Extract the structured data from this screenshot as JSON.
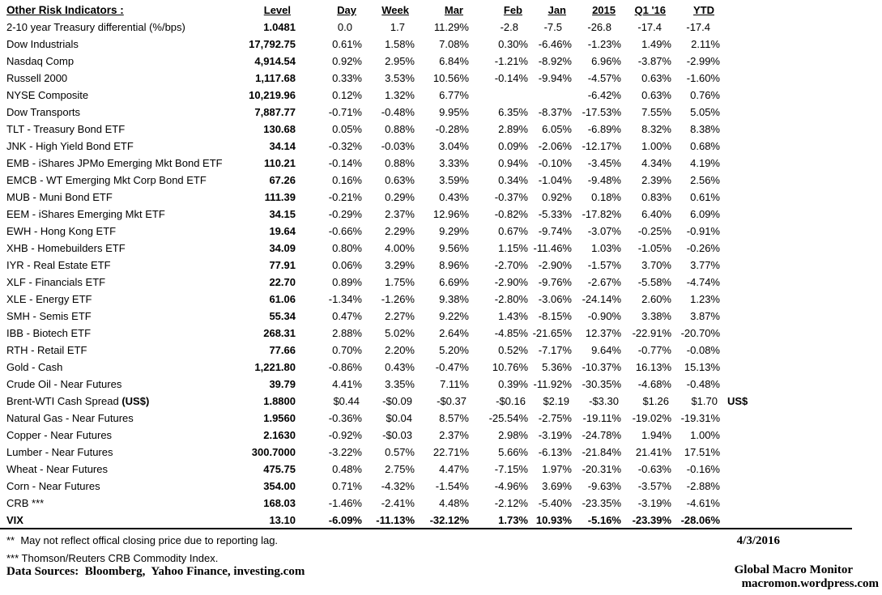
{
  "chart_data": {
    "type": "table",
    "title": "Other Risk Indicators :",
    "columns": [
      "Level",
      "Day",
      "Week",
      "Mar",
      "Feb",
      "Jan",
      "2015",
      "Q1 '16",
      "YTD"
    ],
    "rows": [
      {
        "label": "2-10 year Treasury differential (%/bps)",
        "values": [
          "1.0481",
          "0.0",
          "1.7",
          "11.29%",
          "-2.8",
          "-7.5",
          "-26.8",
          "-17.4",
          "-17.4"
        ]
      },
      {
        "label": "Dow Industrials",
        "values": [
          "17,792.75",
          "0.61%",
          "1.58%",
          "7.08%",
          "0.30%",
          "-6.46%",
          "-1.23%",
          "1.49%",
          "2.11%"
        ]
      },
      {
        "label": "Nasdaq Comp",
        "values": [
          "4,914.54",
          "0.92%",
          "2.95%",
          "6.84%",
          "-1.21%",
          "-8.92%",
          "6.96%",
          "-3.87%",
          "-2.99%"
        ]
      },
      {
        "label": "Russell 2000",
        "values": [
          "1,117.68",
          "0.33%",
          "3.53%",
          "10.56%",
          "-0.14%",
          "-9.94%",
          "-4.57%",
          "0.63%",
          "-1.60%"
        ]
      },
      {
        "label": "NYSE Composite",
        "values": [
          "10,219.96",
          "0.12%",
          "1.32%",
          "6.77%",
          "",
          "",
          "-6.42%",
          "0.63%",
          "0.76%"
        ]
      },
      {
        "label": "Dow Transports",
        "values": [
          "7,887.77",
          "-0.71%",
          "-0.48%",
          "9.95%",
          "6.35%",
          "-8.37%",
          "-17.53%",
          "7.55%",
          "5.05%"
        ]
      },
      {
        "label": "TLT - Treasury Bond ETF",
        "values": [
          "130.68",
          "0.05%",
          "0.88%",
          "-0.28%",
          "2.89%",
          "6.05%",
          "-6.89%",
          "8.32%",
          "8.38%"
        ]
      },
      {
        "label": "JNK - High Yield Bond ETF",
        "values": [
          "34.14",
          "-0.32%",
          "-0.03%",
          "3.04%",
          "0.09%",
          "-2.06%",
          "-12.17%",
          "1.00%",
          "0.68%"
        ]
      },
      {
        "label": "EMB - iShares JPMo Emerging Mkt Bond ETF",
        "values": [
          "110.21",
          "-0.14%",
          "0.88%",
          "3.33%",
          "0.94%",
          "-0.10%",
          "-3.45%",
          "4.34%",
          "4.19%"
        ]
      },
      {
        "label": "EMCB - WT Emerging Mkt Corp Bond ETF",
        "values": [
          "67.26",
          "0.16%",
          "0.63%",
          "3.59%",
          "0.34%",
          "-1.04%",
          "-9.48%",
          "2.39%",
          "2.56%"
        ]
      },
      {
        "label": "MUB - Muni Bond ETF",
        "values": [
          "111.39",
          "-0.21%",
          "0.29%",
          "0.43%",
          "-0.37%",
          "0.92%",
          "0.18%",
          "0.83%",
          "0.61%"
        ]
      },
      {
        "label": "EEM - iShares Emerging Mkt ETF",
        "values": [
          "34.15",
          "-0.29%",
          "2.37%",
          "12.96%",
          "-0.82%",
          "-5.33%",
          "-17.82%",
          "6.40%",
          "6.09%"
        ]
      },
      {
        "label": "EWH - Hong Kong ETF",
        "values": [
          "19.64",
          "-0.66%",
          "2.29%",
          "9.29%",
          "0.67%",
          "-9.74%",
          "-3.07%",
          "-0.25%",
          "-0.91%"
        ]
      },
      {
        "label": "XHB - Homebuilders ETF",
        "values": [
          "34.09",
          "0.80%",
          "4.00%",
          "9.56%",
          "1.15%",
          "-11.46%",
          "1.03%",
          "-1.05%",
          "-0.26%"
        ]
      },
      {
        "label": "IYR - Real Estate ETF",
        "values": [
          "77.91",
          "0.06%",
          "3.29%",
          "8.96%",
          "-2.70%",
          "-2.90%",
          "-1.57%",
          "3.70%",
          "3.77%"
        ]
      },
      {
        "label": "XLF - Financials ETF",
        "values": [
          "22.70",
          "0.89%",
          "1.75%",
          "6.69%",
          "-2.90%",
          "-9.76%",
          "-2.67%",
          "-5.58%",
          "-4.74%"
        ]
      },
      {
        "label": "XLE - Energy ETF",
        "values": [
          "61.06",
          "-1.34%",
          "-1.26%",
          "9.38%",
          "-2.80%",
          "-3.06%",
          "-24.14%",
          "2.60%",
          "1.23%"
        ]
      },
      {
        "label": "SMH - Semis ETF",
        "values": [
          "55.34",
          "0.47%",
          "2.27%",
          "9.22%",
          "1.43%",
          "-8.15%",
          "-0.90%",
          "3.38%",
          "3.87%"
        ]
      },
      {
        "label": "IBB - Biotech ETF",
        "values": [
          "268.31",
          "2.88%",
          "5.02%",
          "2.64%",
          "-4.85%",
          "-21.65%",
          "12.37%",
          "-22.91%",
          "-20.70%"
        ]
      },
      {
        "label": "RTH - Retail ETF",
        "values": [
          "77.66",
          "0.70%",
          "2.20%",
          "5.20%",
          "0.52%",
          "-7.17%",
          "9.64%",
          "-0.77%",
          "-0.08%"
        ]
      },
      {
        "label": "Gold - Cash",
        "values": [
          "1,221.80",
          "-0.86%",
          "0.43%",
          "-0.47%",
          "10.76%",
          "5.36%",
          "-10.37%",
          "16.13%",
          "15.13%"
        ]
      },
      {
        "label": "Crude Oil - Near Futures",
        "values": [
          "39.79",
          "4.41%",
          "3.35%",
          "7.11%",
          "0.39%",
          "-11.92%",
          "-30.35%",
          "-4.68%",
          "-0.48%"
        ]
      },
      {
        "label": "Brent-WTI Cash Spread ",
        "label_bold": "(US$)",
        "note": "US$",
        "values": [
          "1.8800",
          "$0.44",
          "-$0.09",
          "-$0.37",
          "-$0.16",
          "$2.19",
          "-$3.30",
          "$1.26",
          "$1.70"
        ]
      },
      {
        "label": "Natural Gas - Near Futures",
        "values": [
          "1.9560",
          "-0.36%",
          "$0.04",
          "8.57%",
          "-25.54%",
          "-2.75%",
          "-19.11%",
          "-19.02%",
          "-19.31%"
        ]
      },
      {
        "label": "Copper - Near Futures",
        "values": [
          "2.1630",
          "-0.92%",
          "-$0.03",
          "2.37%",
          "2.98%",
          "-3.19%",
          "-24.78%",
          "1.94%",
          "1.00%"
        ]
      },
      {
        "label": "Lumber - Near Futures",
        "values": [
          "300.7000",
          "-3.22%",
          "0.57%",
          "22.71%",
          "5.66%",
          "-6.13%",
          "-21.84%",
          "21.41%",
          "17.51%"
        ]
      },
      {
        "label": "Wheat - Near Futures",
        "values": [
          "475.75",
          "0.48%",
          "2.75%",
          "4.47%",
          "-7.15%",
          "1.97%",
          "-20.31%",
          "-0.63%",
          "-0.16%"
        ]
      },
      {
        "label": "Corn - Near Futures",
        "values": [
          "354.00",
          "0.71%",
          "-4.32%",
          "-1.54%",
          "-4.96%",
          "3.69%",
          "-9.63%",
          "-3.57%",
          "-2.88%"
        ]
      },
      {
        "label": "CRB ***",
        "values": [
          "168.03",
          "-1.46%",
          "-2.41%",
          "4.48%",
          "-2.12%",
          "-5.40%",
          "-23.35%",
          "-3.19%",
          "-4.61%"
        ]
      },
      {
        "label": "VIX",
        "bold": true,
        "values": [
          "13.10",
          "-6.09%",
          "-11.13%",
          "-32.12%",
          "1.73%",
          "10.93%",
          "-5.16%",
          "-23.39%",
          "-28.06%"
        ]
      }
    ]
  },
  "footer": {
    "footnote1": "**  May not reflect offical closing price due to reporting lag.",
    "footnote2": "*** Thomson/Reuters CRB Commodity Index.",
    "data_sources": "Data Sources:  Bloomberg,  Yahoo Finance, investing.com",
    "date": "4/3/2016",
    "brand": "Global Macro Monitor",
    "site": "macromon.wordpress.com"
  },
  "colors": {
    "text": "#000000",
    "background": "#ffffff",
    "divider": "#000000"
  }
}
